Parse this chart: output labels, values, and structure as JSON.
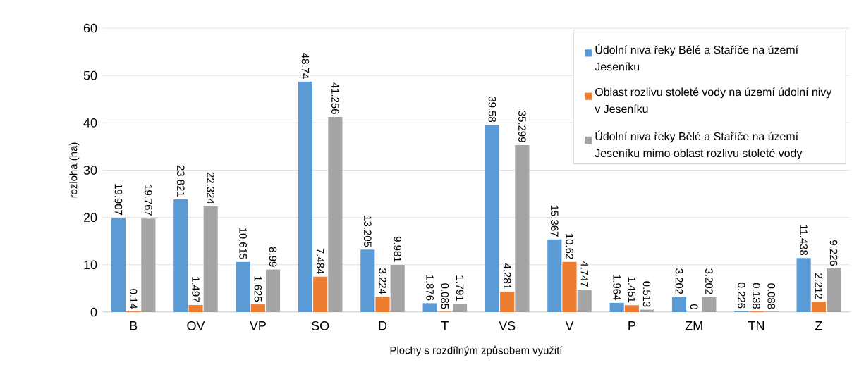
{
  "chart_data": {
    "type": "bar",
    "xlabel": "Plochy s rozdílným způsobem využití",
    "ylabel": "rozloha (ha)",
    "categories": [
      "B",
      "OV",
      "VP",
      "SO",
      "D",
      "T",
      "VS",
      "V",
      "P",
      "ZM",
      "TN",
      "Z"
    ],
    "series": [
      {
        "name": "Údolní niva řeky Bělé a Staříče na území Jeseníku",
        "color": "#5b9bd5",
        "values": [
          19.907,
          23.821,
          10.615,
          48.74,
          13.205,
          1.876,
          39.58,
          15.367,
          1.964,
          3.202,
          0.226,
          11.438
        ]
      },
      {
        "name": "Oblast rozlivu stoleté vody na území údolní nivy v Jeseníku",
        "color": "#ed7d31",
        "values": [
          0.14,
          1.497,
          1.625,
          7.484,
          3.224,
          0.085,
          4.281,
          10.62,
          1.451,
          0,
          0.138,
          2.212
        ]
      },
      {
        "name": "Údolní niva řeky Bělé a Staříče na území Jeseníku mimo oblast rozlivu stoleté vody",
        "color": "#a5a5a5",
        "values": [
          19.767,
          22.324,
          8.99,
          41.256,
          9.981,
          1.791,
          35.299,
          4.747,
          0.513,
          3.202,
          0.088,
          9.226
        ]
      }
    ],
    "ylim": [
      0,
      60
    ],
    "yticks": [
      0,
      10,
      20,
      30,
      40,
      50,
      60
    ],
    "grid": "y",
    "legend": "top right",
    "data_labels": true
  }
}
